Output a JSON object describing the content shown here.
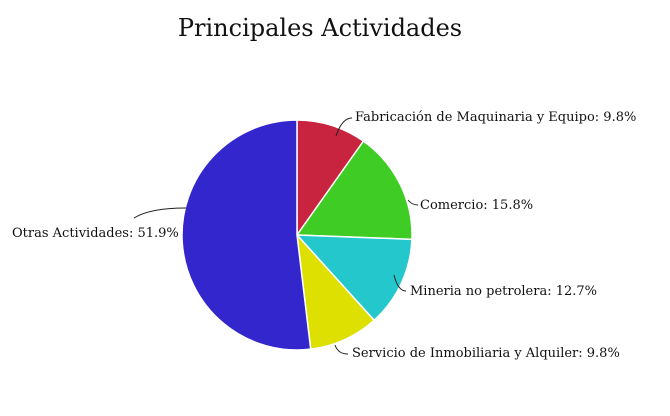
{
  "chart_data": {
    "type": "pie",
    "title": "Principales Actividades",
    "slices": [
      {
        "label": "Fabricación de Maquinaria y Equipo",
        "value": 9.8,
        "display": "Fabricación de Maquinaria y Equipo: 9.8%",
        "color": "#c8233f"
      },
      {
        "label": "Comercio",
        "value": 15.8,
        "display": "Comercio: 15.8%",
        "color": "#3fcc24"
      },
      {
        "label": "Mineria no petrolera",
        "value": 12.7,
        "display": "Mineria no petrolera: 12.7%",
        "color": "#24c8cc"
      },
      {
        "label": "Servicio de Inmobiliaria y Alquiler",
        "value": 9.8,
        "display": "Servicio de Inmobiliaria y Alquiler: 9.8%",
        "color": "#dde000"
      },
      {
        "label": "Otras Actividades",
        "value": 51.9,
        "display": "Otras Actividades: 51.9%",
        "color": "#3226cc"
      }
    ],
    "start_angle": "top",
    "direction": "clockwise",
    "legend": "none"
  }
}
